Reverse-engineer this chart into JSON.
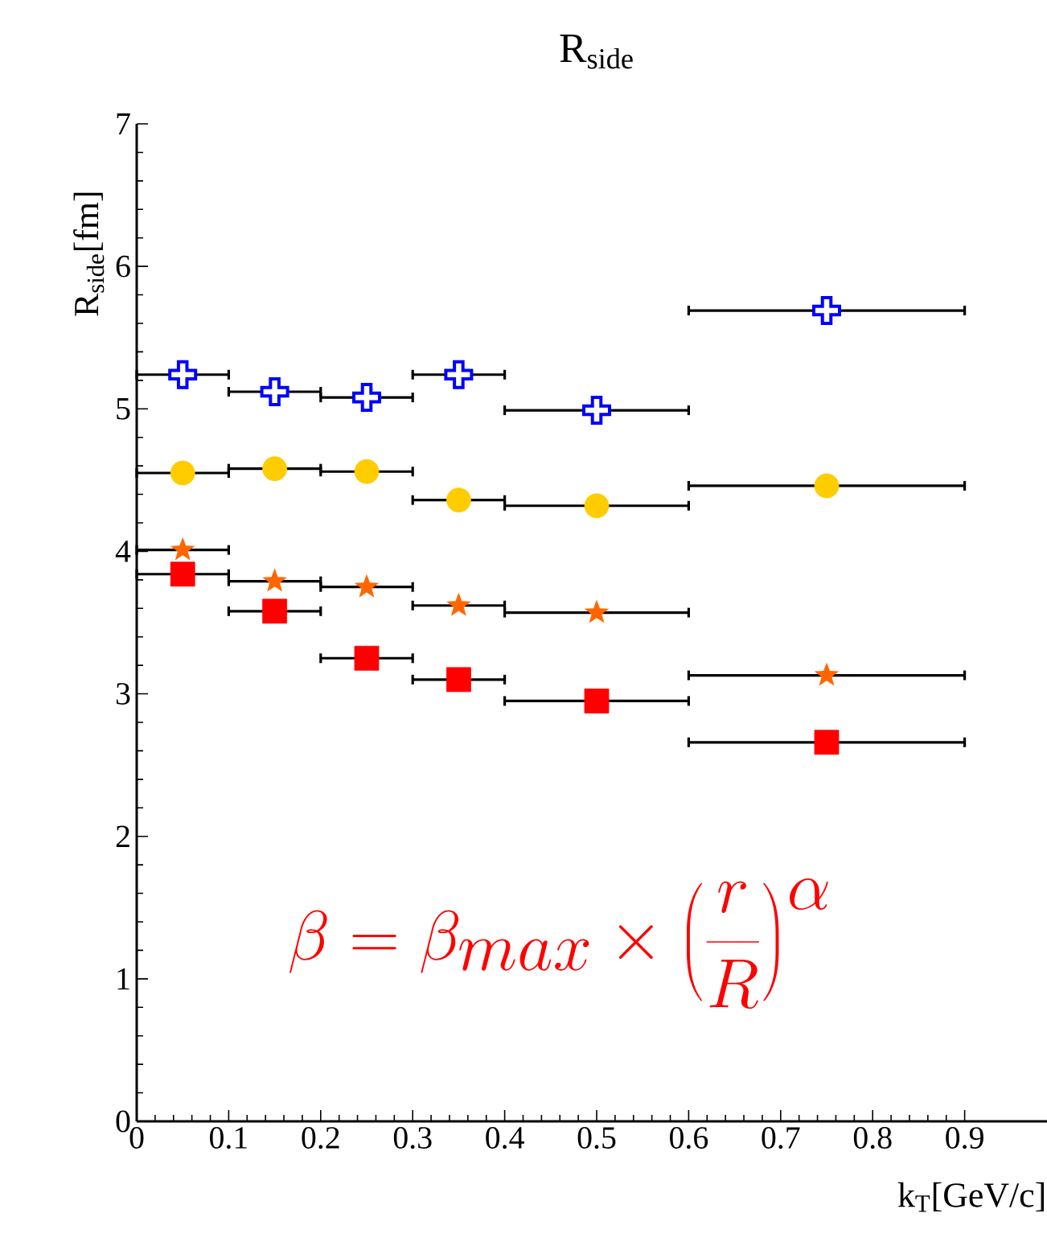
{
  "chart_data": {
    "type": "scatter",
    "title": "R$_{side}$",
    "xlabel": "k$_{T}$[GeV/c]",
    "ylabel": "R$_{side}$[fm]",
    "x": [
      0.05,
      0.15,
      0.25,
      0.35,
      0.5,
      0.75
    ],
    "series": [
      {
        "color": "#0000ff",
        "marker": "cross",
        "values": [
          5.24,
          5.12,
          5.08,
          5.24,
          4.99,
          5.69
        ],
        "xerrors": [
          0.05,
          0.05,
          0.05,
          0.05,
          0.1,
          0.15
        ]
      },
      {
        "color": "#ffcc00",
        "marker": "circle",
        "values": [
          4.55,
          4.58,
          4.56,
          4.36,
          4.32,
          4.46
        ],
        "xerrors": [
          0.05,
          0.05,
          0.05,
          0.05,
          0.1,
          0.15
        ]
      },
      {
        "color": "#ff6600",
        "marker": "star",
        "values": [
          4.01,
          3.79,
          3.75,
          3.62,
          3.57,
          3.13
        ],
        "xerrors": [
          0.05,
          0.05,
          0.05,
          0.05,
          0.1,
          0.15
        ]
      },
      {
        "color": "#ff0000",
        "marker": "square",
        "values": [
          3.84,
          3.58,
          3.25,
          3.1,
          2.95,
          2.66
        ],
        "xerrors": [
          0.05,
          0.05,
          0.05,
          0.05,
          0.1,
          0.15
        ]
      }
    ],
    "xlim": [
      0,
      1
    ],
    "ylim": [
      0,
      7
    ],
    "xticks": [
      0,
      0.1,
      0.2,
      0.3,
      0.4,
      0.5,
      0.6,
      0.7,
      0.8,
      0.9
    ],
    "yticks": [
      0,
      1,
      2,
      3,
      4,
      5,
      6,
      7
    ],
    "grid": false,
    "annotations": [
      "\\beta = \\beta_{max} \\times \\left(\\frac{r}{R}\\right)^{\\alpha}"
    ]
  }
}
